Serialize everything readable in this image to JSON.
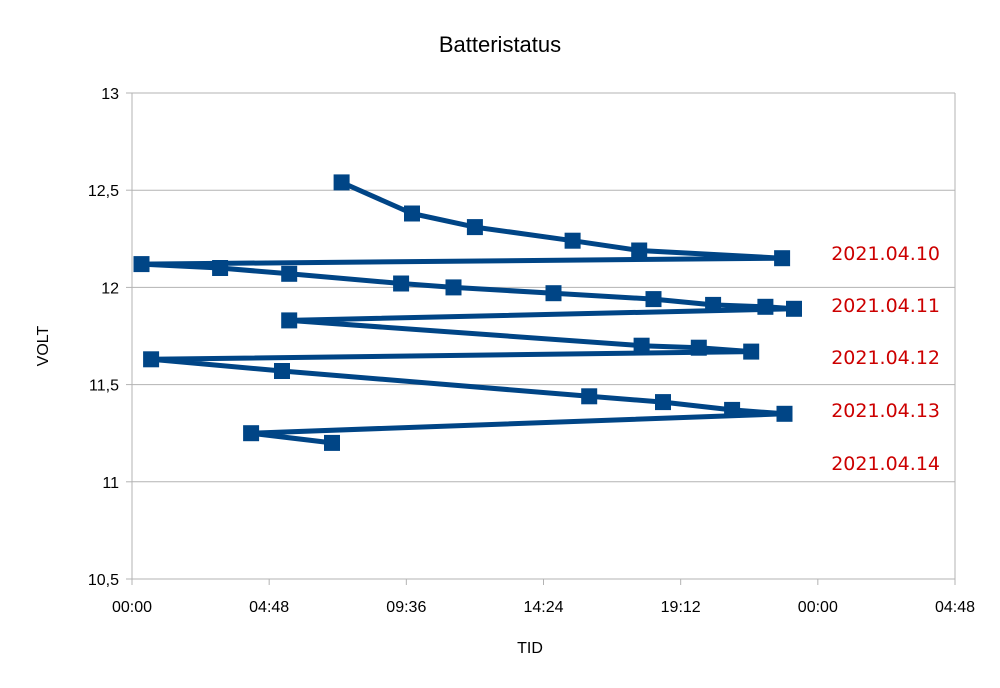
{
  "chart_data": {
    "type": "line",
    "title": "Batteristatus",
    "xlabel": "TID",
    "ylabel": "VOLT",
    "ylim": [
      10.5,
      13
    ],
    "y_ticks": [
      "13",
      "12,5",
      "12",
      "11,5",
      "11",
      "10,5"
    ],
    "x_ticks": [
      "00:00",
      "04:48",
      "09:36",
      "14:24",
      "19:12",
      "00:00",
      "04:48"
    ],
    "grid": true,
    "legend": "none",
    "series_color": "#004586",
    "annotation_color": "#cc0000",
    "annotations": [
      "2021.04.10",
      "2021.04.11",
      "2021.04.12",
      "2021.04.13",
      "2021.04.14"
    ],
    "series": [
      {
        "x": [
          "07:20",
          "09:48",
          "12:00",
          "15:25",
          "17:45",
          "22:45",
          "00:20",
          "03:05",
          "05:30",
          "09:25",
          "11:15",
          "14:45",
          "18:15",
          "20:20",
          "22:10",
          "23:10",
          "05:30",
          "17:50",
          "19:50",
          "21:40",
          "00:40",
          "05:15",
          "16:00",
          "18:35",
          "21:00",
          "22:50",
          "04:10",
          "07:00"
        ],
        "y": [
          12.54,
          12.38,
          12.31,
          12.24,
          12.19,
          12.15,
          12.12,
          12.1,
          12.07,
          12.02,
          12.0,
          11.97,
          11.94,
          11.91,
          11.9,
          11.89,
          11.83,
          11.7,
          11.69,
          11.67,
          11.63,
          11.57,
          11.44,
          11.41,
          11.37,
          11.35,
          11.25,
          11.2
        ]
      }
    ]
  }
}
